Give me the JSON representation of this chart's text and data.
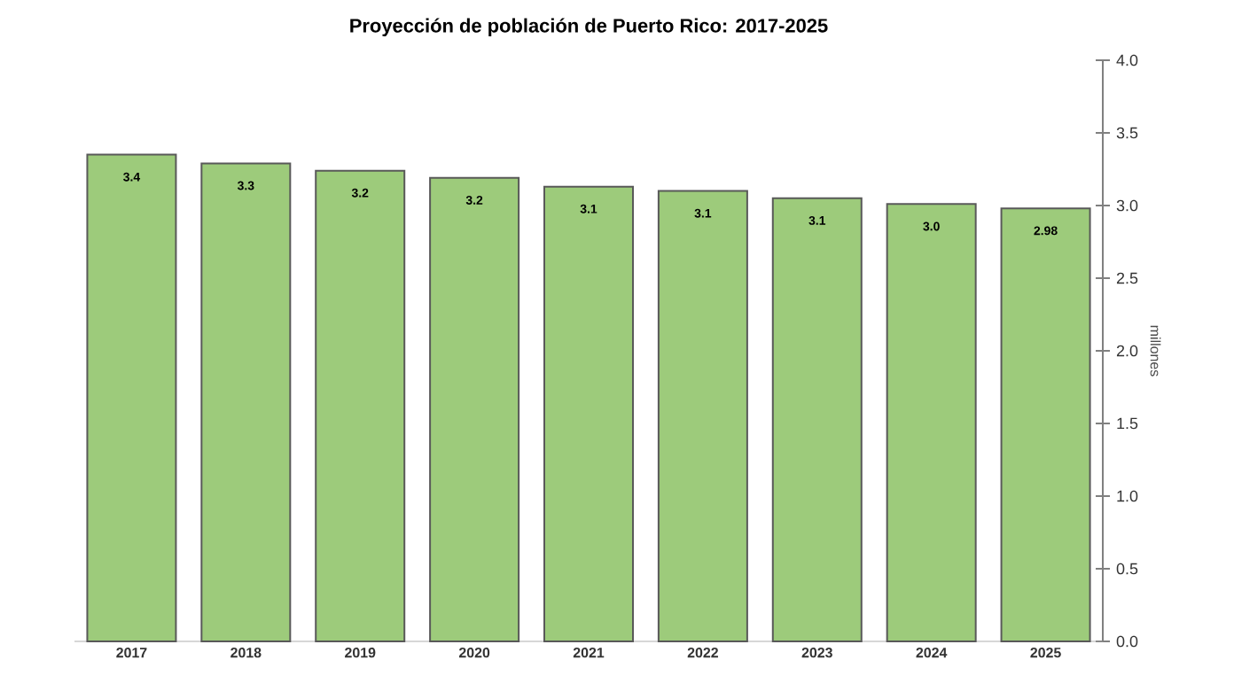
{
  "chart_data": {
    "type": "bar",
    "title": "**Proyección de población de Puerto Rico: 2017-2025**",
    "categories": [
      "2017",
      "2018",
      "2019",
      "2020",
      "2021",
      "2022",
      "2023",
      "2024",
      "2025"
    ],
    "values": [
      3.35,
      3.29,
      3.24,
      3.19,
      3.13,
      3.1,
      3.05,
      3.01,
      2.98
    ],
    "value_labels": [
      "3.4",
      "3.3",
      "3.2",
      "3.2",
      "3.1",
      "3.1",
      "3.1",
      "3.0",
      "2.98"
    ],
    "color": "#9dcb7b",
    "ylabel": "millones",
    "ylim": [
      0,
      4.0
    ],
    "yticks": [
      {
        "value": 0,
        "label": "0.0"
      },
      {
        "value": 0.5,
        "label": "0.5"
      },
      {
        "value": 1.0,
        "label": "1.0"
      },
      {
        "value": 1.5,
        "label": "1.5"
      },
      {
        "value": 2.0,
        "label": "2.0"
      },
      {
        "value": 2.5,
        "label": "2.5"
      },
      {
        "value": 3.0,
        "label": "3.0"
      },
      {
        "value": 3.5,
        "label": "3.5"
      },
      {
        "value": 4.0,
        "label": "4.0"
      }
    ],
    "grid": false
  }
}
